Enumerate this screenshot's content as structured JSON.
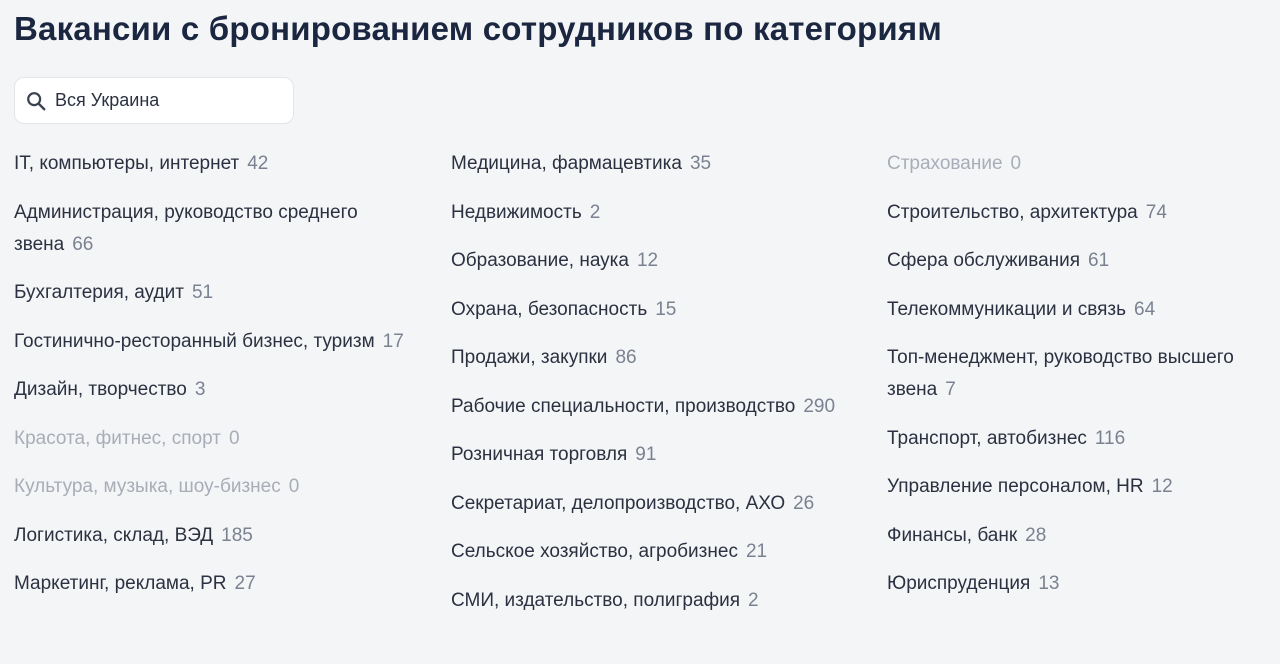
{
  "title": "Вакансии с бронированием сотрудников по категориям",
  "search": {
    "value": "Вся Украина",
    "icon": "search-icon"
  },
  "colors": {
    "title": "#1b2640",
    "text": "#2b3140",
    "count": "#7a8190",
    "disabled": "#a8adb7",
    "background": "#f4f5f7"
  },
  "columns": [
    [
      {
        "label": "IT, компьютеры, интернет",
        "count": "42"
      },
      {
        "label": "Администрация, руководство среднего звена",
        "count": "66"
      },
      {
        "label": "Бухгалтерия, аудит",
        "count": "51"
      },
      {
        "label": "Гостинично-ресторанный бизнес, туризм",
        "count": "17"
      },
      {
        "label": "Дизайн, творчество",
        "count": "3"
      },
      {
        "label": "Красота, фитнес, спорт",
        "count": "0"
      },
      {
        "label": "Культура, музыка, шоу-бизнес",
        "count": "0"
      },
      {
        "label": "Логистика, склад, ВЭД",
        "count": "185"
      },
      {
        "label": "Маркетинг, реклама, PR",
        "count": "27"
      }
    ],
    [
      {
        "label": "Медицина, фармацевтика",
        "count": "35"
      },
      {
        "label": "Недвижимость",
        "count": "2"
      },
      {
        "label": "Образование, наука",
        "count": "12"
      },
      {
        "label": "Охрана, безопасность",
        "count": "15"
      },
      {
        "label": "Продажи, закупки",
        "count": "86"
      },
      {
        "label": "Рабочие специальности, производство",
        "count": "290"
      },
      {
        "label": "Розничная торговля",
        "count": "91"
      },
      {
        "label": "Секретариат, делопроизводство, АХО",
        "count": "26"
      },
      {
        "label": "Сельское хозяйство, агробизнес",
        "count": "21"
      },
      {
        "label": "СМИ, издательство, полиграфия",
        "count": "2"
      }
    ],
    [
      {
        "label": "Страхование",
        "count": "0"
      },
      {
        "label": "Строительство, архитектура",
        "count": "74"
      },
      {
        "label": "Сфера обслуживания",
        "count": "61"
      },
      {
        "label": "Телекоммуникации и связь",
        "count": "64"
      },
      {
        "label": "Топ-менеджмент, руководство высшего звена",
        "count": "7"
      },
      {
        "label": "Транспорт, автобизнес",
        "count": "116"
      },
      {
        "label": "Управление персоналом, HR",
        "count": "12"
      },
      {
        "label": "Финансы, банк",
        "count": "28"
      },
      {
        "label": "Юриспруденция",
        "count": "13"
      }
    ]
  ]
}
